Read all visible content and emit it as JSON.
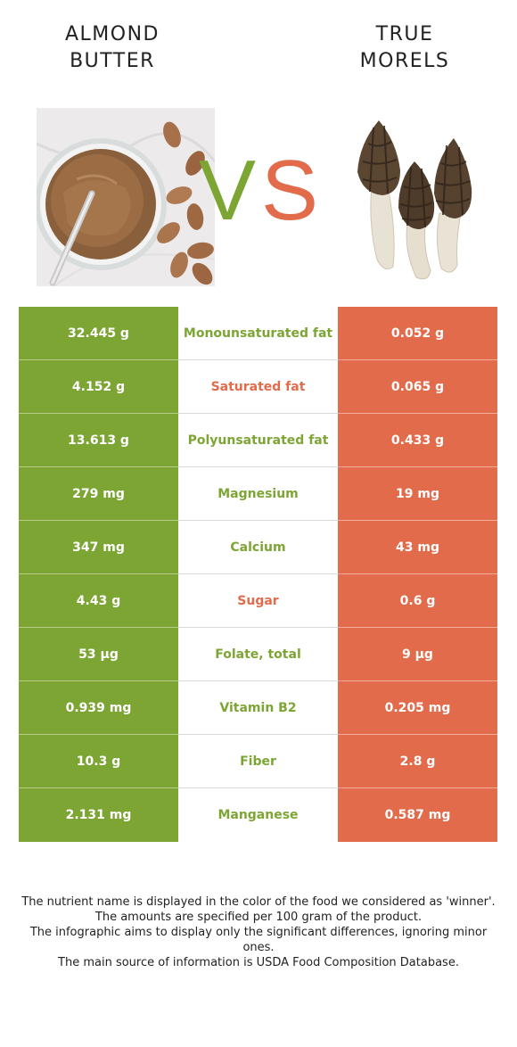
{
  "left_food": {
    "title_line1": "ALMOND",
    "title_line2": "BUTTER",
    "image_icon": "almond-butter-jar-image"
  },
  "right_food": {
    "title_line1": "TRUE",
    "title_line2": "MORELS",
    "image_icon": "morel-mushrooms-image"
  },
  "vs_label": {
    "v": "V",
    "s": "S",
    "v_color": "#7da534",
    "s_color": "#e26b4b"
  },
  "colors": {
    "left_winner": "#7da534",
    "right_winner": "#e26b4b"
  },
  "rows": [
    {
      "left": "32.445 g",
      "nutrient": "Monounsaturated fat",
      "right": "0.052 g",
      "winner": "left"
    },
    {
      "left": "4.152 g",
      "nutrient": "Saturated fat",
      "right": "0.065 g",
      "winner": "right"
    },
    {
      "left": "13.613 g",
      "nutrient": "Polyunsaturated fat",
      "right": "0.433 g",
      "winner": "left"
    },
    {
      "left": "279 mg",
      "nutrient": "Magnesium",
      "right": "19 mg",
      "winner": "left"
    },
    {
      "left": "347 mg",
      "nutrient": "Calcium",
      "right": "43 mg",
      "winner": "left"
    },
    {
      "left": "4.43 g",
      "nutrient": "Sugar",
      "right": "0.6 g",
      "winner": "right"
    },
    {
      "left": "53 µg",
      "nutrient": "Folate, total",
      "right": "9 µg",
      "winner": "left"
    },
    {
      "left": "0.939 mg",
      "nutrient": "Vitamin B2",
      "right": "0.205 mg",
      "winner": "left"
    },
    {
      "left": "10.3 g",
      "nutrient": "Fiber",
      "right": "2.8 g",
      "winner": "left"
    },
    {
      "left": "2.131 mg",
      "nutrient": "Manganese",
      "right": "0.587 mg",
      "winner": "left"
    }
  ],
  "footnote": {
    "line1": "The nutrient name is displayed in the color of the food we considered as 'winner'.",
    "line2": "The amounts are specified per 100 gram of the product.",
    "line3": "The infographic aims to display only the significant differences, ignoring minor ones.",
    "line4": "The main source of information is USDA Food Composition Database."
  }
}
